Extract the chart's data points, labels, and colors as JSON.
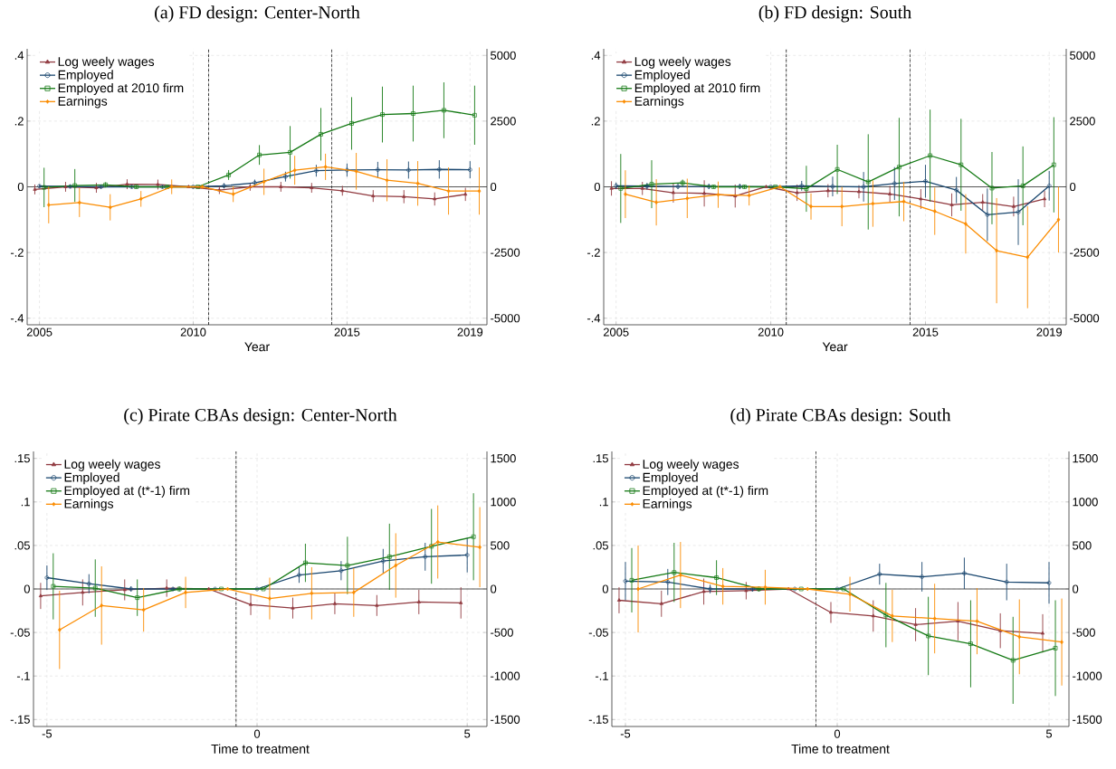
{
  "chart_data": [
    {
      "type": "line",
      "title": "(a) FD design: Center-North",
      "xlabel": "Year",
      "xlim": [
        2004.6,
        2019.55
      ],
      "xticks": [
        2005,
        2010,
        2015,
        2019
      ],
      "ylim": [
        -0.42,
        0.42
      ],
      "yticks": [
        {
          "value": -0.4,
          "label": "-.4"
        },
        {
          "value": -0.2,
          "label": "-.2"
        },
        0,
        {
          "value": 0.2,
          "label": ".2"
        },
        {
          "value": 0.4,
          "label": ".4"
        }
      ],
      "y2lim": [
        -5250,
        5250
      ],
      "y2ticks": [
        -5000,
        -2500,
        0,
        2500,
        5000
      ],
      "grid": true,
      "legend": "top left",
      "ref_lines": [
        {
          "axis": "y",
          "value": 0,
          "color": "#555555"
        },
        {
          "axis": "x",
          "value": 2010.5,
          "color": "#000000",
          "line_style": "dotted"
        },
        {
          "axis": "x",
          "value": 2014.5,
          "color": "#000000",
          "line_style": "dotted"
        }
      ],
      "series": [
        {
          "name": "Log weely wages",
          "color": "#913a40",
          "marker": "triangle",
          "x": [
            2004.85,
            2005.85,
            2006.85,
            2007.85,
            2008.85,
            2009.85,
            2010.85,
            2011.85,
            2012.85,
            2013.85,
            2014.85,
            2015.85,
            2016.85,
            2017.85,
            2018.85
          ],
          "values": [
            -0.008,
            0.0,
            -0.003,
            0.008,
            0.007,
            0,
            -0.01,
            0.0,
            0.0,
            -0.003,
            -0.012,
            -0.028,
            -0.03,
            -0.037,
            -0.023
          ],
          "errors": [
            0.015,
            0.015,
            0.015,
            0.015,
            0.015,
            0,
            0.012,
            0.012,
            0.015,
            0.015,
            0.015,
            0.018,
            0.02,
            0.02,
            0.02
          ]
        },
        {
          "name": "Employed",
          "color": "#1a476f",
          "marker": "circle",
          "x": [
            2005,
            2006,
            2007,
            2008,
            2009,
            2010,
            2011,
            2012,
            2013,
            2014,
            2015,
            2016,
            2017,
            2018,
            2019
          ],
          "values": [
            0.002,
            0.001,
            0,
            0,
            0,
            0,
            0.003,
            0.012,
            0.031,
            0.049,
            0.051,
            0.052,
            0.051,
            0.053,
            0.052
          ],
          "errors": [
            0.005,
            0.005,
            0.005,
            0.005,
            0.005,
            0,
            0.008,
            0.01,
            0.015,
            0.018,
            0.02,
            0.024,
            0.026,
            0.028,
            0.026
          ]
        },
        {
          "name": "Employed at 2010 firm",
          "color": "#157a15",
          "marker": "square",
          "x": [
            2005.15,
            2006.15,
            2007.15,
            2008.15,
            2009.15,
            2010.15,
            2011.15,
            2012.15,
            2013.15,
            2014.15,
            2015.15,
            2016.15,
            2017.15,
            2018.15,
            2019.15
          ],
          "values": [
            -0.002,
            0.004,
            0.006,
            0,
            0,
            0,
            0.036,
            0.097,
            0.105,
            0.16,
            0.193,
            0.22,
            0.223,
            0.233,
            0.218
          ],
          "errors": [
            0.06,
            0.05,
            0.008,
            0.005,
            0.005,
            0,
            0.015,
            0.03,
            0.08,
            0.08,
            0.08,
            0.085,
            0.085,
            0.085,
            0.09
          ]
        },
        {
          "name": "Earnings",
          "color": "#fb8c00",
          "marker": "diamond",
          "axis": "y2",
          "x": [
            2005.3,
            2006.3,
            2007.3,
            2008.3,
            2009.3,
            2010.3,
            2011.3,
            2012.3,
            2013.3,
            2014.3,
            2015.3,
            2016.3,
            2017.3,
            2018.3,
            2019.3
          ],
          "values": [
            -690,
            -600,
            -780,
            -460,
            0,
            0,
            -280,
            190,
            630,
            760,
            590,
            250,
            130,
            -160,
            -160
          ],
          "errors": [
            700,
            550,
            500,
            300,
            280,
            0,
            300,
            500,
            550,
            500,
            700,
            800,
            850,
            900,
            900
          ]
        }
      ]
    },
    {
      "type": "line",
      "title": "(b) FD design: South",
      "xlabel": "Year",
      "xlim": [
        2004.6,
        2019.55
      ],
      "xticks": [
        2005,
        2010,
        2015,
        2019
      ],
      "ylim": [
        -0.42,
        0.42
      ],
      "yticks": [
        {
          "value": -0.4,
          "label": "-.4"
        },
        {
          "value": -0.2,
          "label": "-.2"
        },
        0,
        {
          "value": 0.2,
          "label": ".2"
        },
        {
          "value": 0.4,
          "label": ".4"
        }
      ],
      "y2lim": [
        -5250,
        5250
      ],
      "y2ticks": [
        -5000,
        -2500,
        0,
        2500,
        5000
      ],
      "grid": true,
      "legend": "top left",
      "ref_lines": [
        {
          "axis": "y",
          "value": 0,
          "color": "#555555"
        },
        {
          "axis": "x",
          "value": 2010.5,
          "color": "#000000",
          "line_style": "dotted"
        },
        {
          "axis": "x",
          "value": 2014.5,
          "color": "#000000",
          "line_style": "dotted"
        }
      ],
      "series": [
        {
          "name": "Log weely wages",
          "color": "#913a40",
          "marker": "triangle",
          "x": [
            2004.85,
            2005.85,
            2006.85,
            2007.85,
            2008.85,
            2009.85,
            2010.85,
            2011.85,
            2012.85,
            2013.85,
            2014.85,
            2015.85,
            2016.85,
            2017.85,
            2018.85
          ],
          "values": [
            -0.005,
            -0.005,
            -0.018,
            -0.02,
            -0.028,
            0,
            -0.018,
            -0.012,
            -0.015,
            -0.022,
            -0.037,
            -0.055,
            -0.047,
            -0.06,
            -0.037
          ],
          "errors": [
            0.022,
            0.02,
            0.03,
            0.04,
            0.035,
            0,
            0.025,
            0.02,
            0.02,
            0.025,
            0.03,
            0.035,
            0.025,
            0.03,
            0.025
          ]
        },
        {
          "name": "Employed",
          "color": "#1a476f",
          "marker": "circle",
          "x": [
            2005,
            2006,
            2007,
            2008,
            2009,
            2010,
            2011,
            2012,
            2013,
            2014,
            2015,
            2016,
            2017,
            2018,
            2019
          ],
          "values": [
            0.003,
            0.002,
            0.001,
            0.001,
            0.001,
            0,
            0.003,
            0.001,
            0,
            0.01,
            0.017,
            -0.01,
            -0.085,
            -0.077,
            0.003
          ],
          "errors": [
            0.01,
            0.01,
            0.008,
            0.008,
            0.008,
            0,
            0.015,
            0.03,
            0.045,
            0.05,
            0.05,
            0.04,
            0.08,
            0.1,
            0.045
          ]
        },
        {
          "name": "Employed at 2010 firm",
          "color": "#157a15",
          "marker": "square",
          "x": [
            2005.15,
            2006.15,
            2007.15,
            2008.15,
            2009.15,
            2010.15,
            2011.15,
            2012.15,
            2013.15,
            2014.15,
            2015.15,
            2016.15,
            2017.15,
            2018.15,
            2019.15
          ],
          "values": [
            -0.005,
            0.008,
            0.012,
            0,
            0,
            0,
            -0.006,
            0.053,
            0.015,
            0.06,
            0.095,
            0.067,
            -0.004,
            0.003,
            0.067
          ],
          "errors": [
            0.105,
            0.073,
            0.01,
            0.005,
            0.005,
            0,
            0.07,
            0.075,
            0.145,
            0.15,
            0.14,
            0.14,
            0.11,
            0.12,
            0.145
          ]
        },
        {
          "name": "Earnings",
          "color": "#fb8c00",
          "marker": "diamond",
          "axis": "y2",
          "x": [
            2005.3,
            2006.3,
            2007.3,
            2008.3,
            2009.3,
            2010.3,
            2011.3,
            2012.3,
            2013.3,
            2014.3,
            2015.3,
            2016.3,
            2017.3,
            2018.3,
            2019.3
          ],
          "values": [
            -280,
            -590,
            -440,
            -300,
            -330,
            0,
            -750,
            -750,
            -640,
            -560,
            -930,
            -1410,
            -2430,
            -2680,
            -1250
          ],
          "errors": [
            910,
            880,
            750,
            500,
            380,
            0,
            500,
            750,
            880,
            750,
            900,
            1130,
            2000,
            1940,
            1250
          ]
        }
      ]
    },
    {
      "type": "line",
      "title": "(c) Pirate CBAs design: Center-North",
      "xlabel": "Time to treatment",
      "xlim": [
        -5.32,
        5.47
      ],
      "xticks": [
        -5,
        0,
        5
      ],
      "ylim": [
        -0.158,
        0.158
      ],
      "yticks": [
        {
          "value": -0.15,
          "label": "-.15"
        },
        {
          "value": -0.1,
          "label": "-.1"
        },
        {
          "value": -0.05,
          "label": "-.05"
        },
        0,
        {
          "value": 0.05,
          "label": ".05"
        },
        {
          "value": 0.1,
          "label": ".1"
        },
        {
          "value": 0.15,
          "label": ".15"
        }
      ],
      "y2lim": [
        -1580,
        1580
      ],
      "y2ticks": [
        -1500,
        -1000,
        -500,
        0,
        500,
        1000,
        1500
      ],
      "grid": true,
      "legend": "top left",
      "ref_lines": [
        {
          "axis": "y",
          "value": 0,
          "color": "#555555"
        },
        {
          "axis": "x",
          "value": -0.5,
          "color": "#000000",
          "line_style": "dotted"
        }
      ],
      "series": [
        {
          "name": "Log weely wages",
          "color": "#913a40",
          "marker": "triangle",
          "x": [
            -5.15,
            -4.15,
            -3.15,
            -2.15,
            -1.15,
            -0.15,
            0.85,
            1.85,
            2.85,
            3.85,
            4.85
          ],
          "values": [
            -0.008,
            -0.004,
            -0.001,
            0.001,
            0,
            -0.018,
            -0.022,
            -0.017,
            -0.019,
            -0.015,
            -0.016
          ],
          "errors": [
            0.015,
            0.015,
            0.012,
            0.01,
            0,
            0.012,
            0.012,
            0.012,
            0.012,
            0.014,
            0.018
          ]
        },
        {
          "name": "Employed",
          "color": "#1a476f",
          "marker": "circle",
          "x": [
            -5,
            -4,
            -3,
            -2,
            -1,
            0,
            1,
            2,
            3,
            4,
            5
          ],
          "values": [
            0.013,
            0.006,
            0,
            0,
            0,
            0,
            0.016,
            0.021,
            0.032,
            0.037,
            0.039
          ],
          "errors": [
            0.014,
            0.011,
            0.003,
            0.002,
            0,
            0,
            0.009,
            0.011,
            0.014,
            0.016,
            0.02
          ]
        },
        {
          "name": "Employed at (t*-1) firm",
          "color": "#157a15",
          "marker": "square",
          "x": [
            -4.85,
            -3.85,
            -2.85,
            -1.85,
            -0.85,
            0.15,
            1.15,
            2.15,
            3.15,
            4.15,
            5.15
          ],
          "values": [
            0.003,
            0.001,
            -0.01,
            0,
            0,
            0,
            0.03,
            0.027,
            0.037,
            0.049,
            0.06
          ],
          "errors": [
            0.038,
            0.033,
            0.021,
            0.003,
            0,
            0,
            0.022,
            0.033,
            0.038,
            0.043,
            0.05
          ]
        },
        {
          "name": "Earnings",
          "color": "#fb8c00",
          "marker": "diamond",
          "axis": "y2",
          "x": [
            -4.7,
            -3.7,
            -2.7,
            -1.7,
            -0.7,
            0.3,
            1.3,
            2.3,
            3.3,
            4.3,
            5.3
          ],
          "values": [
            -470,
            -190,
            -240,
            -40,
            0,
            -110,
            -50,
            -40,
            270,
            540,
            480
          ],
          "errors": [
            450,
            450,
            250,
            180,
            0,
            240,
            300,
            280,
            370,
            420,
            460
          ]
        }
      ]
    },
    {
      "type": "line",
      "title": "(d) Pirate CBAs design: South",
      "xlabel": "Time to treatment",
      "xlim": [
        -5.32,
        5.47
      ],
      "xticks": [
        -5,
        0,
        5
      ],
      "ylim": [
        -0.158,
        0.158
      ],
      "yticks": [
        {
          "value": -0.15,
          "label": "-.15"
        },
        {
          "value": -0.1,
          "label": "-.1"
        },
        {
          "value": -0.05,
          "label": "-.05"
        },
        0,
        {
          "value": 0.05,
          "label": ".05"
        },
        {
          "value": 0.1,
          "label": ".1"
        },
        {
          "value": 0.15,
          "label": ".15"
        }
      ],
      "y2lim": [
        -1580,
        1580
      ],
      "y2ticks": [
        -1500,
        -1000,
        -500,
        0,
        500,
        1000,
        1500
      ],
      "grid": true,
      "legend": "top left",
      "ref_lines": [
        {
          "axis": "y",
          "value": 0,
          "color": "#555555"
        },
        {
          "axis": "x",
          "value": -0.5,
          "color": "#000000",
          "line_style": "dotted"
        }
      ],
      "series": [
        {
          "name": "Log weely wages",
          "color": "#913a40",
          "marker": "triangle",
          "x": [
            -5.15,
            -4.15,
            -3.15,
            -2.15,
            -1.15,
            -0.15,
            0.85,
            1.85,
            2.85,
            3.85,
            4.85
          ],
          "values": [
            -0.013,
            -0.017,
            -0.003,
            -0.002,
            0,
            -0.027,
            -0.031,
            -0.041,
            -0.037,
            -0.048,
            -0.051
          ],
          "errors": [
            0.015,
            0.015,
            0.015,
            0.01,
            0,
            0.012,
            0.018,
            0.019,
            0.022,
            0.02,
            0.022
          ]
        },
        {
          "name": "Employed",
          "color": "#1a476f",
          "marker": "circle",
          "x": [
            -5,
            -4,
            -3,
            -2,
            -1,
            0,
            1,
            2,
            3,
            4,
            5
          ],
          "values": [
            0.009,
            0.008,
            0,
            0,
            0,
            0,
            0.017,
            0.014,
            0.018,
            0.008,
            0.007
          ],
          "errors": [
            0.022,
            0.015,
            0.005,
            0.003,
            0,
            0,
            0.012,
            0.017,
            0.018,
            0.021,
            0.024
          ]
        },
        {
          "name": "Employed at (t*-1) firm",
          "color": "#157a15",
          "marker": "square",
          "x": [
            -4.85,
            -3.85,
            -2.85,
            -1.85,
            -0.85,
            0.15,
            1.15,
            2.15,
            3.15,
            4.15,
            5.15
          ],
          "values": [
            0.01,
            0.019,
            0.013,
            0,
            0,
            0,
            -0.03,
            -0.054,
            -0.063,
            -0.082,
            -0.068
          ],
          "errors": [
            0.037,
            0.034,
            0.02,
            0.003,
            0,
            0,
            0.037,
            0.045,
            0.05,
            0.05,
            0.055
          ]
        },
        {
          "name": "Earnings",
          "color": "#fb8c00",
          "marker": "diamond",
          "axis": "y2",
          "x": [
            -4.7,
            -3.7,
            -2.7,
            -1.7,
            -0.7,
            0.3,
            1.3,
            2.3,
            3.3,
            4.3,
            5.3
          ],
          "values": [
            0,
            160,
            30,
            20,
            0,
            -60,
            -310,
            -340,
            -370,
            -550,
            -610
          ],
          "errors": [
            500,
            380,
            210,
            200,
            0,
            200,
            300,
            400,
            380,
            430,
            500
          ]
        }
      ]
    }
  ]
}
